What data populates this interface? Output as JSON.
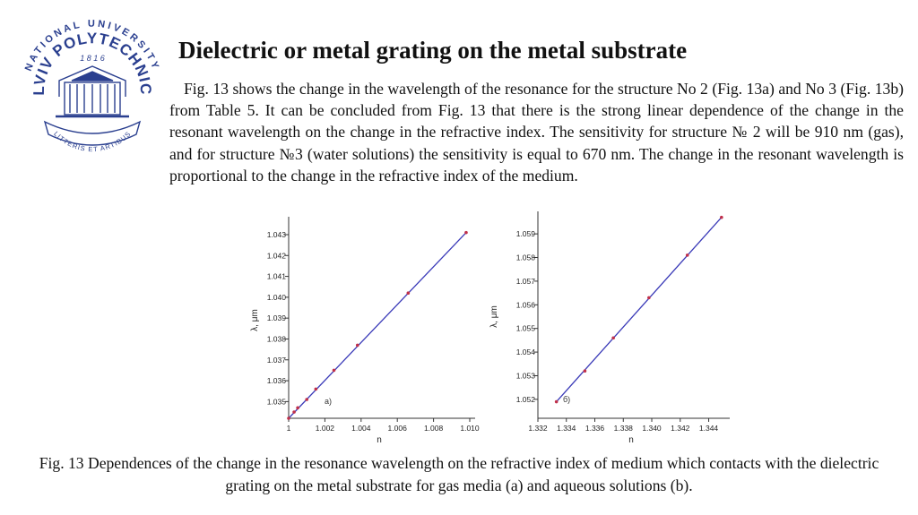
{
  "logo": {
    "ring_text_top": "NATIONAL UNIVERSITY",
    "ring_text_name": "LVIV POLYTECHNIC",
    "year": "1 8 1 6",
    "motto": "LITTERIS ET ARTIBUS",
    "colors": {
      "primary": "#2a3f8f"
    }
  },
  "slide": {
    "title": "Dielectric or metal grating on the metal substrate",
    "paragraph": "Fig. 13 shows the change in the wavelength of the resonance for the structure No 2 (Fig. 13a) and No 3 (Fig. 13b) from Table 5. It can be concluded from Fig. 13 that there is the strong linear dependence of the change in the resonant wavelength on the change in the refractive index. The sensitivity for structure № 2 will be 910 nm (gas), and for structure №3 (water solutions) the sensitivity is equal to 670 nm. The change in the resonant wavelength is proportional to the change in the refractive index of the medium.",
    "caption": "Fig. 13 Dependences of the change in the resonance wavelength on the refractive index of medium which contacts with the dielectric grating on the metal substrate for gas media (a) and aqueous solutions (b)."
  },
  "chart_data": [
    {
      "type": "line",
      "panel_label": "a)",
      "xlabel": "n",
      "ylabel": "λ, μm",
      "xlim": [
        1.0,
        1.01
      ],
      "ylim": [
        1.0342,
        1.0436
      ],
      "xticks": [
        "1",
        "1.002",
        "1.004",
        "1.006",
        "1.008",
        "1.010"
      ],
      "xtick_values": [
        1.0,
        1.002,
        1.004,
        1.006,
        1.008,
        1.01
      ],
      "yticks": [
        "1.035",
        "1.036",
        "1.037",
        "1.038",
        "1.039",
        "1.040",
        "1.041",
        "1.042",
        "1.043"
      ],
      "ytick_values": [
        1.035,
        1.036,
        1.037,
        1.038,
        1.039,
        1.04,
        1.041,
        1.042,
        1.043
      ],
      "grid": false,
      "line_color": "#3a3ab8",
      "marker_color": "#c0304a",
      "points": [
        {
          "x": 1.0,
          "y": 1.0342
        },
        {
          "x": 1.0003,
          "y": 1.0345
        },
        {
          "x": 1.0005,
          "y": 1.0347
        },
        {
          "x": 1.001,
          "y": 1.0351
        },
        {
          "x": 1.0015,
          "y": 1.0356
        },
        {
          "x": 1.0025,
          "y": 1.0365
        },
        {
          "x": 1.0038,
          "y": 1.0377
        },
        {
          "x": 1.0066,
          "y": 1.0402
        },
        {
          "x": 1.0098,
          "y": 1.0431
        }
      ]
    },
    {
      "type": "line",
      "panel_label": "б)",
      "xlabel": "n",
      "ylabel": "λ, μm",
      "xlim": [
        1.332,
        1.3451
      ],
      "ylim": [
        1.0512,
        1.0598
      ],
      "xticks": [
        "1.332",
        "1.334",
        "1.336",
        "1.338",
        "1.340",
        "1.342",
        "1.344"
      ],
      "xtick_values": [
        1.332,
        1.334,
        1.336,
        1.338,
        1.34,
        1.342,
        1.344
      ],
      "yticks": [
        "1.052",
        "1.053",
        "1.054",
        "1.055",
        "1.056",
        "1.057",
        "1.058",
        "1.059"
      ],
      "ytick_values": [
        1.052,
        1.053,
        1.054,
        1.055,
        1.056,
        1.057,
        1.058,
        1.059
      ],
      "grid": false,
      "line_color": "#3a3ab8",
      "marker_color": "#c0304a",
      "points": [
        {
          "x": 1.3333,
          "y": 1.0519
        },
        {
          "x": 1.3353,
          "y": 1.0532
        },
        {
          "x": 1.3373,
          "y": 1.0546
        },
        {
          "x": 1.3398,
          "y": 1.0563
        },
        {
          "x": 1.3425,
          "y": 1.0581
        },
        {
          "x": 1.3449,
          "y": 1.0597
        }
      ]
    }
  ]
}
